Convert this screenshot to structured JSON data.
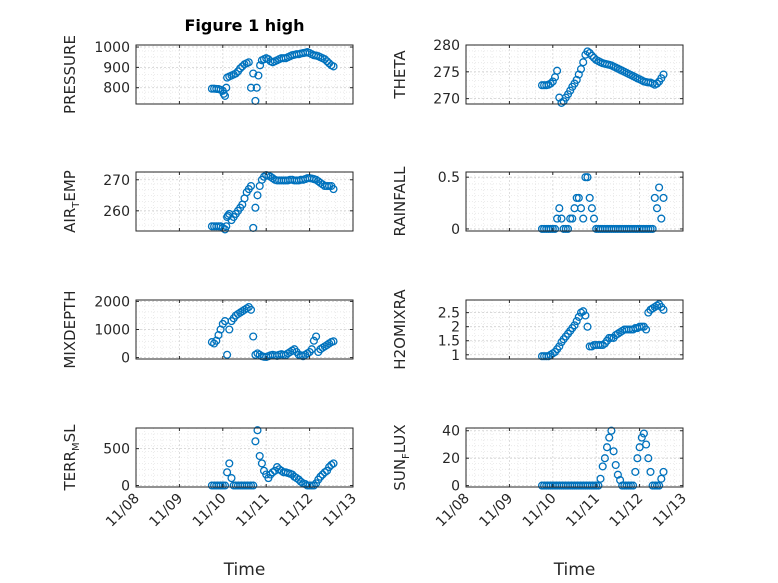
{
  "figure": {
    "title": "Figure 1 high",
    "marker_color": "#0072BD",
    "x_tick_labels": [
      "11/08",
      "11/09",
      "11/10",
      "11/11",
      "11/12",
      "11/13"
    ],
    "xlabel": "Time"
  },
  "chart_data": [
    {
      "type": "scatter",
      "ylabel": "PRESSURE",
      "ylim": [
        720,
        1010
      ],
      "yticks": [
        800,
        900,
        1000
      ],
      "grid": true,
      "series": [
        {
          "x": [
            1.75,
            1.8,
            1.85,
            1.9,
            1.95,
            2.0,
            2.02,
            2.05,
            2.08,
            2.1,
            2.15,
            2.2,
            2.25,
            2.3,
            2.35,
            2.4,
            2.45,
            2.5,
            2.55,
            2.6,
            2.65,
            2.7,
            2.75,
            2.78,
            2.82,
            2.86,
            2.9,
            2.95,
            3.0,
            3.05,
            3.1,
            3.15,
            3.2,
            3.25,
            3.3,
            3.35,
            3.4,
            3.45,
            3.5,
            3.55,
            3.6,
            3.65,
            3.7,
            3.75,
            3.8,
            3.85,
            3.9,
            3.95,
            4.0,
            4.05,
            4.1,
            4.15,
            4.2,
            4.25,
            4.3,
            4.35,
            4.4,
            4.45,
            4.5,
            4.55
          ],
          "y": [
            795,
            795,
            794,
            793,
            790,
            785,
            770,
            760,
            800,
            850,
            855,
            860,
            865,
            870,
            880,
            895,
            905,
            915,
            920,
            925,
            800,
            870,
            735,
            800,
            860,
            910,
            935,
            940,
            945,
            940,
            930,
            925,
            930,
            935,
            940,
            945,
            945,
            945,
            950,
            955,
            960,
            962,
            965,
            965,
            968,
            970,
            972,
            975,
            970,
            965,
            960,
            958,
            955,
            950,
            945,
            940,
            930,
            920,
            910,
            905
          ]
        }
      ]
    },
    {
      "type": "scatter",
      "ylabel": "THETA",
      "ylim": [
        269,
        280
      ],
      "yticks": [
        270,
        275,
        280
      ],
      "grid": true,
      "series": [
        {
          "x": [
            1.75,
            1.8,
            1.85,
            1.9,
            1.95,
            2.0,
            2.05,
            2.1,
            2.15,
            2.2,
            2.25,
            2.3,
            2.35,
            2.4,
            2.45,
            2.5,
            2.55,
            2.6,
            2.65,
            2.7,
            2.75,
            2.8,
            2.85,
            2.9,
            2.95,
            3.0,
            3.05,
            3.1,
            3.15,
            3.2,
            3.25,
            3.3,
            3.35,
            3.4,
            3.45,
            3.5,
            3.55,
            3.6,
            3.65,
            3.7,
            3.75,
            3.8,
            3.85,
            3.9,
            3.95,
            4.0,
            4.05,
            4.1,
            4.15,
            4.2,
            4.25,
            4.3,
            4.35,
            4.4,
            4.45,
            4.5,
            4.55
          ],
          "y": [
            272.5,
            272.5,
            272.5,
            272.6,
            272.8,
            273.2,
            274.0,
            275.2,
            270.2,
            269.2,
            269.5,
            270.2,
            270.8,
            271.5,
            272.2,
            272.8,
            273.5,
            274.5,
            275.5,
            276.8,
            278.2,
            278.8,
            278.5,
            278.0,
            277.6,
            277.2,
            277.0,
            276.8,
            276.6,
            276.5,
            276.4,
            276.3,
            276.2,
            276.0,
            275.8,
            275.6,
            275.4,
            275.2,
            275.0,
            274.8,
            274.6,
            274.4,
            274.2,
            274.0,
            273.8,
            273.6,
            273.4,
            273.2,
            273.1,
            273.0,
            273.0,
            272.8,
            272.6,
            272.8,
            273.2,
            273.8,
            274.5
          ]
        }
      ]
    },
    {
      "type": "scatter",
      "ylabel": "AIR_TEMP",
      "ylim": [
        253.5,
        272.5
      ],
      "yticks": [
        260,
        270
      ],
      "grid": true,
      "series": [
        {
          "x": [
            1.75,
            1.8,
            1.85,
            1.9,
            1.95,
            2.0,
            2.05,
            2.08,
            2.1,
            2.12,
            2.15,
            2.2,
            2.25,
            2.3,
            2.35,
            2.4,
            2.45,
            2.5,
            2.55,
            2.6,
            2.65,
            2.7,
            2.75,
            2.8,
            2.85,
            2.9,
            2.95,
            3.0,
            3.05,
            3.1,
            3.15,
            3.2,
            3.25,
            3.3,
            3.35,
            3.4,
            3.45,
            3.5,
            3.55,
            3.6,
            3.65,
            3.7,
            3.75,
            3.8,
            3.85,
            3.9,
            3.95,
            4.0,
            4.05,
            4.1,
            4.15,
            4.2,
            4.25,
            4.3,
            4.35,
            4.4,
            4.45,
            4.5,
            4.55
          ],
          "y": [
            255,
            255,
            255,
            255,
            255,
            254.5,
            254,
            255,
            258,
            258.5,
            259,
            257,
            258,
            259,
            260,
            261,
            262,
            264,
            266,
            267,
            268,
            254.5,
            261,
            265,
            268,
            270,
            271,
            271.5,
            271.3,
            271,
            270.5,
            270,
            269.8,
            269.8,
            269.8,
            269.8,
            269.8,
            269.8,
            270,
            270,
            269.8,
            269.8,
            269.8,
            270,
            270,
            270.2,
            270.5,
            270.5,
            270.4,
            270.2,
            270,
            269.5,
            269,
            268.5,
            268,
            268,
            268,
            268,
            267
          ]
        }
      ]
    },
    {
      "type": "scatter",
      "ylabel": "RAINFALL",
      "ylim": [
        -0.02,
        0.55
      ],
      "yticks": [
        0,
        0.5
      ],
      "grid": true,
      "series": [
        {
          "x": [
            1.75,
            1.8,
            1.85,
            1.9,
            1.95,
            2.0,
            2.05,
            2.1,
            2.15,
            2.2,
            2.25,
            2.3,
            2.35,
            2.4,
            2.45,
            2.5,
            2.55,
            2.6,
            2.65,
            2.7,
            2.75,
            2.8,
            2.85,
            2.9,
            2.95,
            3.0,
            3.05,
            3.1,
            3.15,
            3.2,
            3.25,
            3.3,
            3.35,
            3.4,
            3.45,
            3.5,
            3.55,
            3.6,
            3.65,
            3.7,
            3.75,
            3.8,
            3.85,
            3.9,
            3.95,
            4.0,
            4.05,
            4.1,
            4.15,
            4.2,
            4.25,
            4.3,
            4.35,
            4.4,
            4.45,
            4.5,
            4.55
          ],
          "y": [
            0,
            0,
            0,
            0,
            0,
            0,
            0,
            0.1,
            0.2,
            0.1,
            0,
            0,
            0,
            0.1,
            0.1,
            0.2,
            0.3,
            0.3,
            0.2,
            0.1,
            0.5,
            0.5,
            0.3,
            0.2,
            0.1,
            0,
            0,
            0,
            0,
            0,
            0,
            0,
            0,
            0,
            0,
            0,
            0,
            0,
            0,
            0,
            0,
            0,
            0,
            0,
            0,
            0,
            0,
            0,
            0,
            0,
            0,
            0,
            0.3,
            0.2,
            0.4,
            0.1,
            0.3
          ]
        }
      ]
    },
    {
      "type": "scatter",
      "ylabel": "MIXDEPTH",
      "ylim": [
        -50,
        2050
      ],
      "yticks": [
        0,
        1000,
        2000
      ],
      "grid": true,
      "series": [
        {
          "x": [
            1.75,
            1.8,
            1.85,
            1.9,
            1.95,
            2.0,
            2.05,
            2.1,
            2.15,
            2.2,
            2.25,
            2.3,
            2.35,
            2.4,
            2.45,
            2.5,
            2.55,
            2.6,
            2.65,
            2.7,
            2.75,
            2.8,
            2.85,
            2.9,
            2.95,
            3.0,
            3.05,
            3.1,
            3.15,
            3.2,
            3.25,
            3.3,
            3.35,
            3.4,
            3.45,
            3.5,
            3.55,
            3.6,
            3.65,
            3.7,
            3.75,
            3.8,
            3.85,
            3.9,
            3.95,
            4.0,
            4.05,
            4.1,
            4.15,
            4.2,
            4.25,
            4.3,
            4.35,
            4.4,
            4.45,
            4.5,
            4.55
          ],
          "y": [
            550,
            500,
            600,
            800,
            1000,
            1200,
            1300,
            100,
            1000,
            1300,
            1400,
            1500,
            1550,
            1600,
            1650,
            1700,
            1750,
            1800,
            1700,
            750,
            100,
            150,
            100,
            50,
            30,
            20,
            50,
            80,
            100,
            80,
            60,
            100,
            120,
            100,
            80,
            150,
            200,
            250,
            300,
            200,
            100,
            80,
            50,
            100,
            150,
            200,
            300,
            600,
            750,
            200,
            300,
            350,
            400,
            450,
            500,
            550,
            580
          ]
        }
      ]
    },
    {
      "type": "scatter",
      "ylabel": "H2OMIXRA",
      "ylim": [
        0.85,
        2.95
      ],
      "yticks": [
        1,
        1.5,
        2,
        2.5
      ],
      "grid": true,
      "series": [
        {
          "x": [
            1.75,
            1.8,
            1.85,
            1.9,
            1.95,
            2.0,
            2.05,
            2.1,
            2.15,
            2.2,
            2.25,
            2.3,
            2.35,
            2.4,
            2.45,
            2.5,
            2.55,
            2.6,
            2.65,
            2.7,
            2.75,
            2.8,
            2.85,
            2.9,
            2.95,
            3.0,
            3.05,
            3.1,
            3.15,
            3.2,
            3.25,
            3.3,
            3.35,
            3.4,
            3.45,
            3.5,
            3.55,
            3.6,
            3.65,
            3.7,
            3.75,
            3.8,
            3.85,
            3.9,
            3.95,
            4.0,
            4.05,
            4.1,
            4.15,
            4.2,
            4.25,
            4.3,
            4.35,
            4.4,
            4.45,
            4.5,
            4.55
          ],
          "y": [
            0.95,
            0.95,
            0.95,
            0.95,
            1.0,
            1.05,
            1.1,
            1.2,
            1.3,
            1.45,
            1.55,
            1.65,
            1.75,
            1.85,
            1.95,
            2.05,
            2.2,
            2.35,
            2.5,
            2.55,
            2.4,
            2.0,
            1.3,
            1.3,
            1.35,
            1.35,
            1.35,
            1.35,
            1.35,
            1.4,
            1.5,
            1.6,
            1.6,
            1.6,
            1.7,
            1.75,
            1.8,
            1.85,
            1.9,
            1.9,
            1.9,
            1.9,
            1.9,
            1.95,
            1.95,
            2.0,
            2.0,
            2.0,
            1.9,
            2.5,
            2.6,
            2.65,
            2.7,
            2.75,
            2.8,
            2.7,
            2.6
          ]
        }
      ]
    },
    {
      "type": "scatter",
      "ylabel": "TERR_MSL",
      "ylim": [
        -20,
        780
      ],
      "yticks": [
        0,
        500
      ],
      "grid": true,
      "series": [
        {
          "x": [
            1.75,
            1.8,
            1.85,
            1.9,
            1.95,
            2.0,
            2.05,
            2.1,
            2.15,
            2.2,
            2.25,
            2.3,
            2.35,
            2.4,
            2.45,
            2.5,
            2.55,
            2.6,
            2.65,
            2.7,
            2.75,
            2.8,
            2.85,
            2.9,
            2.95,
            3.0,
            3.05,
            3.1,
            3.15,
            3.2,
            3.25,
            3.3,
            3.35,
            3.4,
            3.45,
            3.5,
            3.55,
            3.6,
            3.65,
            3.7,
            3.75,
            3.8,
            3.85,
            3.9,
            3.95,
            4.0,
            4.05,
            4.1,
            4.15,
            4.2,
            4.25,
            4.3,
            4.35,
            4.4,
            4.45,
            4.5,
            4.55
          ],
          "y": [
            0,
            0,
            0,
            0,
            0,
            0,
            0,
            180,
            300,
            100,
            0,
            0,
            0,
            0,
            0,
            0,
            0,
            0,
            0,
            0,
            600,
            750,
            400,
            300,
            200,
            150,
            100,
            150,
            180,
            200,
            250,
            220,
            200,
            180,
            180,
            170,
            160,
            150,
            120,
            100,
            80,
            50,
            30,
            20,
            0,
            0,
            0,
            0,
            30,
            80,
            120,
            150,
            180,
            200,
            250,
            280,
            300
          ]
        }
      ]
    },
    {
      "type": "scatter",
      "ylabel": "SUN_FLUX",
      "ylim": [
        -1,
        42
      ],
      "yticks": [
        0,
        20,
        40
      ],
      "grid": true,
      "series": [
        {
          "x": [
            1.75,
            1.8,
            1.85,
            1.9,
            1.95,
            2.0,
            2.05,
            2.1,
            2.15,
            2.2,
            2.25,
            2.3,
            2.35,
            2.4,
            2.45,
            2.5,
            2.55,
            2.6,
            2.65,
            2.7,
            2.75,
            2.8,
            2.85,
            2.9,
            2.95,
            3.0,
            3.05,
            3.1,
            3.15,
            3.2,
            3.25,
            3.3,
            3.35,
            3.4,
            3.45,
            3.5,
            3.55,
            3.6,
            3.65,
            3.7,
            3.75,
            3.8,
            3.85,
            3.9,
            3.95,
            4.0,
            4.05,
            4.1,
            4.15,
            4.2,
            4.25,
            4.3,
            4.35,
            4.4,
            4.45,
            4.5,
            4.55
          ],
          "y": [
            0,
            0,
            0,
            0,
            0,
            0,
            0,
            0,
            0,
            0,
            0,
            0,
            0,
            0,
            0,
            0,
            0,
            0,
            0,
            0,
            0,
            0,
            0,
            0,
            0,
            0,
            0,
            5,
            14,
            20,
            28,
            35,
            40,
            25,
            15,
            8,
            4,
            0,
            0,
            0,
            0,
            0,
            0,
            10,
            20,
            28,
            35,
            38,
            30,
            20,
            10,
            0,
            0,
            0,
            0,
            5,
            10
          ]
        }
      ]
    }
  ]
}
